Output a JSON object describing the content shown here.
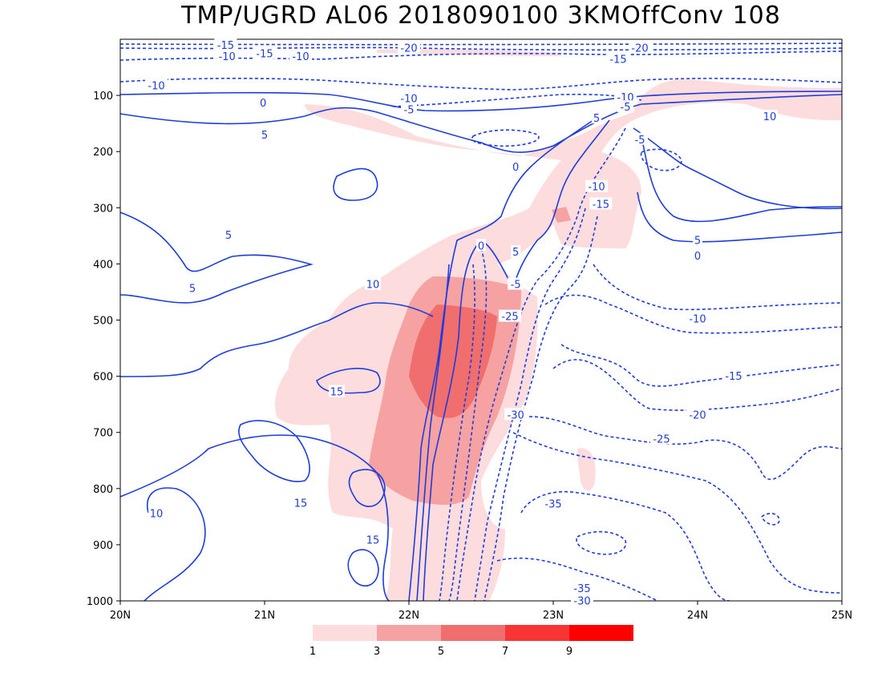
{
  "chart_data": {
    "type": "contour",
    "title": "TMP/UGRD AL06 2018090100 3KMOffConv 108",
    "x_ticks": [
      "20N",
      "21N",
      "22N",
      "23N",
      "24N",
      "25N"
    ],
    "xlim": [
      20,
      25
    ],
    "y_ticks": [
      100,
      200,
      300,
      400,
      500,
      600,
      700,
      800,
      900,
      1000
    ],
    "ylim": [
      1000,
      0
    ],
    "colorbar": {
      "labels": [
        "1",
        "3",
        "5",
        "7",
        "9"
      ],
      "colors": [
        "#fcdcdc",
        "#f6a2a2",
        "#f06e6e",
        "#f83434",
        "#ff0000"
      ]
    },
    "contour_color": "#1e3cdc",
    "contour_labels": [
      {
        "text": "-15",
        "x": 20.73,
        "y": 10
      },
      {
        "text": "-10",
        "x": 20.74,
        "y": 30
      },
      {
        "text": "-15",
        "x": 21.0,
        "y": 25
      },
      {
        "text": "-10",
        "x": 21.25,
        "y": 30
      },
      {
        "text": "-20",
        "x": 22.0,
        "y": 15
      },
      {
        "text": "-20",
        "x": 23.6,
        "y": 15
      },
      {
        "text": "-15",
        "x": 23.45,
        "y": 35
      },
      {
        "text": "-10",
        "x": 20.25,
        "y": 82
      },
      {
        "text": "0",
        "x": 20.99,
        "y": 113
      },
      {
        "text": "-10",
        "x": 22.0,
        "y": 105
      },
      {
        "text": "-5",
        "x": 22.0,
        "y": 125
      },
      {
        "text": "-10",
        "x": 23.5,
        "y": 103
      },
      {
        "text": "-5",
        "x": 23.5,
        "y": 120
      },
      {
        "text": "5",
        "x": 23.3,
        "y": 140
      },
      {
        "text": "10",
        "x": 24.5,
        "y": 137
      },
      {
        "text": "5",
        "x": 21.0,
        "y": 170
      },
      {
        "text": "-5",
        "x": 23.6,
        "y": 178
      },
      {
        "text": "0",
        "x": 22.74,
        "y": 227
      },
      {
        "text": "-10",
        "x": 23.3,
        "y": 262
      },
      {
        "text": "-15",
        "x": 23.33,
        "y": 293
      },
      {
        "text": "5",
        "x": 24.0,
        "y": 357
      },
      {
        "text": "0",
        "x": 24.0,
        "y": 385
      },
      {
        "text": "5",
        "x": 20.75,
        "y": 348
      },
      {
        "text": "0",
        "x": 22.5,
        "y": 367
      },
      {
        "text": "5",
        "x": 22.74,
        "y": 378
      },
      {
        "text": "5",
        "x": 20.5,
        "y": 443
      },
      {
        "text": "10",
        "x": 21.75,
        "y": 436
      },
      {
        "text": "-5",
        "x": 22.74,
        "y": 436
      },
      {
        "text": "-25",
        "x": 22.7,
        "y": 493
      },
      {
        "text": "-10",
        "x": 24.0,
        "y": 497
      },
      {
        "text": "15",
        "x": 21.5,
        "y": 627
      },
      {
        "text": "-15",
        "x": 24.25,
        "y": 599
      },
      {
        "text": "-20",
        "x": 24.0,
        "y": 668
      },
      {
        "text": "-30",
        "x": 22.74,
        "y": 668
      },
      {
        "text": "-25",
        "x": 23.75,
        "y": 711
      },
      {
        "text": "15",
        "x": 21.25,
        "y": 825
      },
      {
        "text": "10",
        "x": 20.25,
        "y": 844
      },
      {
        "text": "-35",
        "x": 23.0,
        "y": 827
      },
      {
        "text": "15",
        "x": 21.75,
        "y": 891
      },
      {
        "text": "-35",
        "x": 23.2,
        "y": 977
      },
      {
        "text": "-30",
        "x": 23.2,
        "y": 999
      }
    ]
  }
}
